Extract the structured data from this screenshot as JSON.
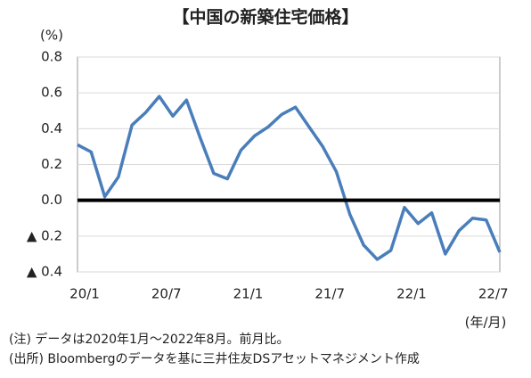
{
  "chart_data": {
    "type": "line",
    "title": "【中国の新築住宅価格】",
    "y_label": "(%)",
    "x_label": "(年/月)",
    "notes": [
      "(注) データは2020年1月～2022年8月。前月比。",
      "(出所) Bloombergのデータを基に三井住友DSアセットマネジメント作成"
    ],
    "categories": [
      "20/1",
      null,
      null,
      null,
      null,
      null,
      "20/7",
      null,
      null,
      null,
      null,
      null,
      "21/1",
      null,
      null,
      null,
      null,
      null,
      "21/7",
      null,
      null,
      null,
      null,
      null,
      "22/1",
      null,
      null,
      null,
      null,
      null,
      "22/7",
      null
    ],
    "values": [
      0.31,
      0.27,
      0.02,
      0.13,
      0.42,
      0.49,
      0.58,
      0.47,
      0.56,
      0.35,
      0.15,
      0.12,
      0.28,
      0.36,
      0.41,
      0.48,
      0.52,
      0.41,
      0.3,
      0.16,
      -0.08,
      -0.25,
      -0.33,
      -0.28,
      -0.04,
      -0.13,
      -0.07,
      -0.3,
      -0.17,
      -0.1,
      -0.11,
      -0.29
    ],
    "color": "#4a7ebb",
    "ylim": [
      -0.4,
      0.8
    ],
    "yticks": [
      {
        "value": -0.4,
        "label": "▲ 0.4"
      },
      {
        "value": -0.2,
        "label": "▲ 0.2"
      },
      {
        "value": 0,
        "label": "0.0"
      },
      0.2,
      0.4,
      0.6,
      0.8
    ],
    "grid": true
  }
}
